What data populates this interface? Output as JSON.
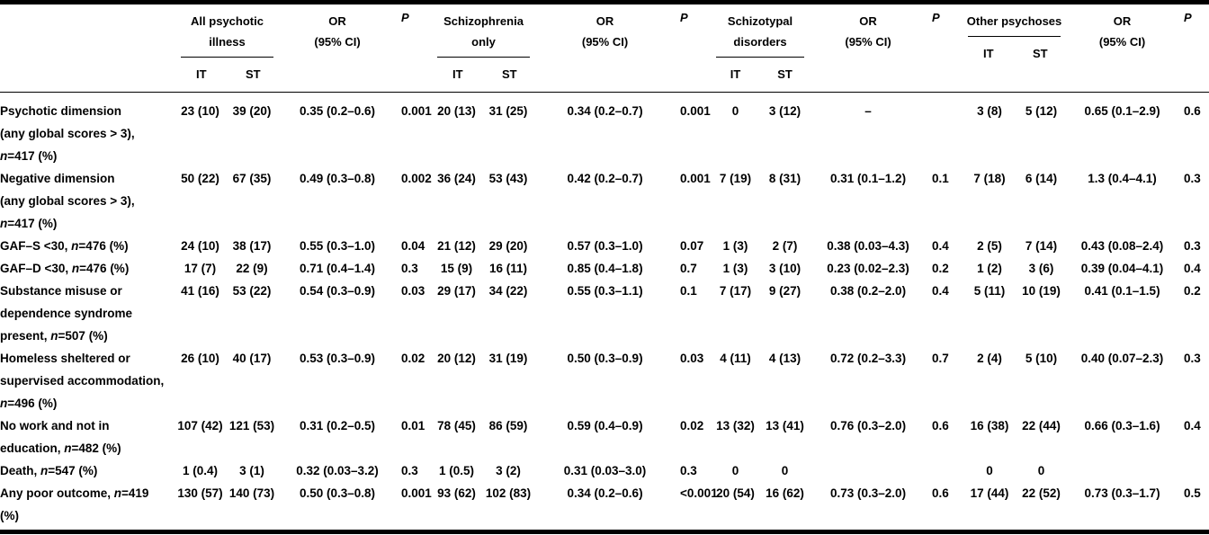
{
  "table": {
    "groups": [
      {
        "name": "All psychotic\nillness",
        "it_label": "IT",
        "st_label": "ST",
        "or_label": "OR\n(95% CI)",
        "p_label": "P"
      },
      {
        "name": "Schizophrenia\nonly",
        "it_label": "IT",
        "st_label": "ST",
        "or_label": "OR\n(95% CI)",
        "p_label": "P"
      },
      {
        "name": "Schizotypal\ndisorders",
        "it_label": "IT",
        "st_label": "ST",
        "or_label": "OR\n(95% CI)",
        "p_label": "P"
      },
      {
        "name": "Other psychoses",
        "it_label": "IT",
        "st_label": "ST",
        "or_label": "OR\n(95% CI)",
        "p_label": "P"
      }
    ],
    "rows": [
      {
        "label": "Psychotic dimension\n(any global scores > 3),\nn=417 (%)",
        "cells": [
          "23 (10)",
          "39 (20)",
          "0.35 (0.2–0.6)",
          "0.001",
          "20 (13)",
          "31 (25)",
          "0.34 (0.2–0.7)",
          "0.001",
          "0",
          "3 (12)",
          "–",
          "",
          "3 (8)",
          "5 (12)",
          "0.65 (0.1–2.9)",
          "0.6"
        ]
      },
      {
        "label": "Negative dimension\n(any global scores > 3),\nn=417 (%)",
        "cells": [
          "50 (22)",
          "67 (35)",
          "0.49 (0.3–0.8)",
          "0.002",
          "36 (24)",
          "53 (43)",
          "0.42 (0.2–0.7)",
          "0.001",
          "7 (19)",
          "8 (31)",
          "0.31 (0.1–1.2)",
          "0.1",
          "7 (18)",
          "6 (14)",
          "1.3 (0.4–4.1)",
          "0.3"
        ]
      },
      {
        "label": "GAF–S <30, n=476 (%)",
        "cells": [
          "24 (10)",
          "38 (17)",
          "0.55 (0.3–1.0)",
          "0.04",
          "21 (12)",
          "29 (20)",
          "0.57 (0.3–1.0)",
          "0.07",
          "1 (3)",
          "2 (7)",
          "0.38 (0.03–4.3)",
          "0.4",
          "2 (5)",
          "7 (14)",
          "0.43 (0.08–2.4)",
          "0.3"
        ]
      },
      {
        "label": "GAF–D <30, n=476 (%)",
        "cells": [
          "17 (7)",
          "22 (9)",
          "0.71 (0.4–1.4)",
          "0.3",
          "15 (9)",
          "16 (11)",
          "0.85 (0.4–1.8)",
          "0.7",
          "1 (3)",
          "3 (10)",
          "0.23 (0.02–2.3)",
          "0.2",
          "1 (2)",
          "3 (6)",
          "0.39 (0.04–4.1)",
          "0.4"
        ]
      },
      {
        "label": "Substance misuse or\ndependence syndrome\npresent, n=507 (%)",
        "cells": [
          "41 (16)",
          "53 (22)",
          "0.54 (0.3–0.9)",
          "0.03",
          "29 (17)",
          "34 (22)",
          "0.55 (0.3–1.1)",
          "0.1",
          "7 (17)",
          "9 (27)",
          "0.38 (0.2–2.0)",
          "0.4",
          "5 (11)",
          "10 (19)",
          "0.41 (0.1–1.5)",
          "0.2"
        ]
      },
      {
        "label": "Homeless sheltered or\nsupervised accommodation,\nn=496 (%)",
        "cells": [
          "26 (10)",
          "40 (17)",
          "0.53 (0.3–0.9)",
          "0.02",
          "20 (12)",
          "31 (19)",
          "0.50 (0.3–0.9)",
          "0.03",
          "4 (11)",
          "4 (13)",
          "0.72 (0.2–3.3)",
          "0.7",
          "2 (4)",
          "5 (10)",
          "0.40 (0.07–2.3)",
          "0.3"
        ]
      },
      {
        "label": "No work and not in\neducation, n=482 (%)",
        "cells": [
          "107 (42)",
          "121 (53)",
          "0.31 (0.2–0.5)",
          "0.01",
          "78 (45)",
          "86 (59)",
          "0.59 (0.4–0.9)",
          "0.02",
          "13 (32)",
          "13 (41)",
          "0.76 (0.3–2.0)",
          "0.6",
          "16 (38)",
          "22 (44)",
          "0.66 (0.3–1.6)",
          "0.4"
        ]
      },
      {
        "label": "Death, n=547 (%)",
        "cells": [
          "1 (0.4)",
          "3 (1)",
          "0.32 (0.03–3.2)",
          "0.3",
          "1 (0.5)",
          "3 (2)",
          "0.31 (0.03–3.0)",
          "0.3",
          "0",
          "0",
          "",
          "",
          "0",
          "0",
          "",
          ""
        ]
      },
      {
        "label": "Any poor outcome, n=419\n(%)",
        "cells": [
          "130 (57)",
          "140 (73)",
          "0.50 (0.3–0.8)",
          "0.001",
          "93 (62)",
          "102 (83)",
          "0.34 (0.2–0.6)",
          "<0.001",
          "20 (54)",
          "16 (62)",
          "0.73 (0.3–2.0)",
          "0.6",
          "17 (44)",
          "22 (52)",
          "0.73 (0.3–1.7)",
          "0.5"
        ]
      }
    ]
  }
}
